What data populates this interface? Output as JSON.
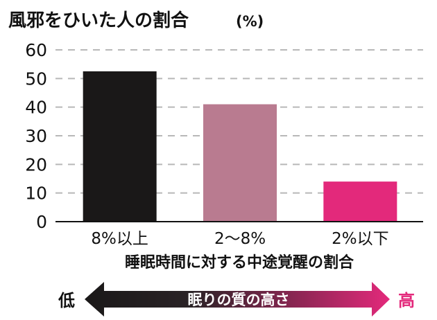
{
  "chart_data": {
    "type": "bar",
    "title": "風邪をひいた人の割合",
    "unit": "(%)",
    "categories": [
      "8%以上",
      "2〜8%",
      "2%以下"
    ],
    "values": [
      52.5,
      41,
      14
    ],
    "colors": [
      "#1a1818",
      "#b97b90",
      "#e3297b"
    ],
    "xlabel": "睡眠時間に対する中途覚醒の割合",
    "ylabel": "",
    "ylim": [
      0,
      60
    ],
    "yticks": [
      0,
      10,
      20,
      30,
      40,
      50,
      60
    ],
    "grid": true
  },
  "scale_arrow": {
    "label": "眠りの質の高さ",
    "low": "低",
    "high": "高",
    "gradient": [
      "#1a1818",
      "#e3297b"
    ]
  }
}
